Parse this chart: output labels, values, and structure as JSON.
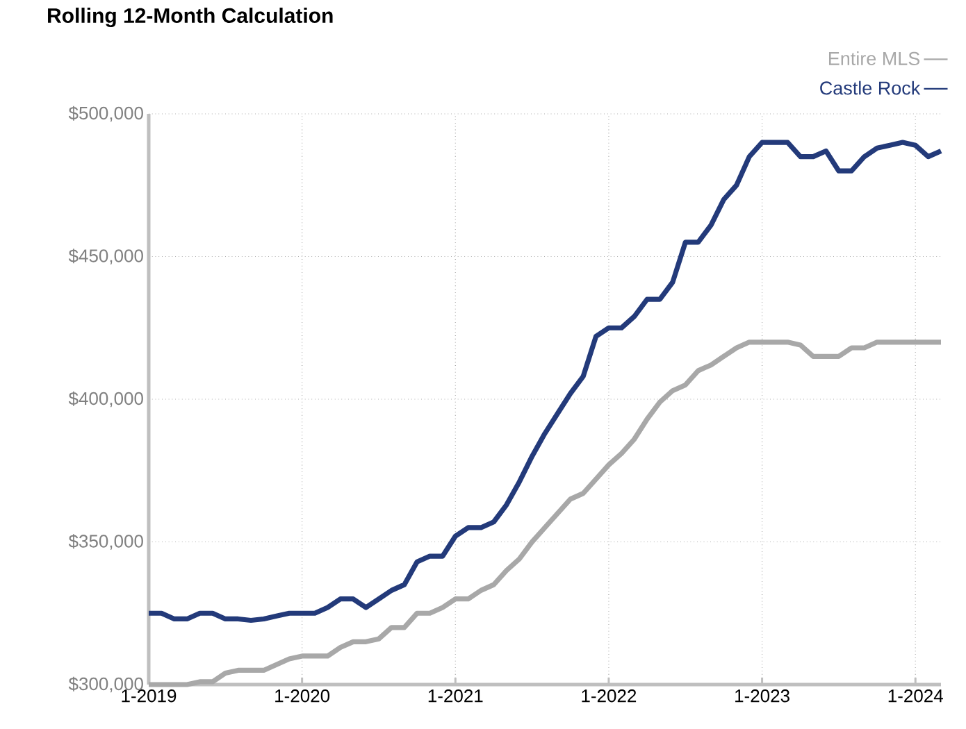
{
  "chart_data": {
    "type": "line",
    "title": "Rolling 12-Month Calculation",
    "x": [
      "2019-01",
      "2019-02",
      "2019-03",
      "2019-04",
      "2019-05",
      "2019-06",
      "2019-07",
      "2019-08",
      "2019-09",
      "2019-10",
      "2019-11",
      "2019-12",
      "2020-01",
      "2020-02",
      "2020-03",
      "2020-04",
      "2020-05",
      "2020-06",
      "2020-07",
      "2020-08",
      "2020-09",
      "2020-10",
      "2020-11",
      "2020-12",
      "2021-01",
      "2021-02",
      "2021-03",
      "2021-04",
      "2021-05",
      "2021-06",
      "2021-07",
      "2021-08",
      "2021-09",
      "2021-10",
      "2021-11",
      "2021-12",
      "2022-01",
      "2022-02",
      "2022-03",
      "2022-04",
      "2022-05",
      "2022-06",
      "2022-07",
      "2022-08",
      "2022-09",
      "2022-10",
      "2022-11",
      "2022-12",
      "2023-01",
      "2023-02",
      "2023-03",
      "2023-04",
      "2023-05",
      "2023-06",
      "2023-07",
      "2023-08",
      "2023-09",
      "2023-10",
      "2023-11",
      "2023-12",
      "2024-01",
      "2024-02",
      "2024-03"
    ],
    "series": [
      {
        "name": "Entire MLS",
        "color": "#a8a8a8",
        "values": [
          300000,
          300000,
          300000,
          300000,
          301000,
          301000,
          304000,
          305000,
          305000,
          305000,
          307000,
          309000,
          310000,
          310000,
          310000,
          313000,
          315000,
          315000,
          316000,
          320000,
          320000,
          325000,
          325000,
          327000,
          330000,
          330000,
          333000,
          335000,
          340000,
          344000,
          350000,
          355000,
          360000,
          365000,
          367000,
          372000,
          377000,
          381000,
          386000,
          393000,
          399000,
          403000,
          405000,
          410000,
          412000,
          415000,
          418000,
          420000,
          420000,
          420000,
          420000,
          419000,
          415000,
          415000,
          415000,
          418000,
          418000,
          420000,
          420000,
          420000,
          420000,
          420000,
          420000
        ]
      },
      {
        "name": "Castle Rock",
        "color": "#233a7a",
        "values": [
          325000,
          325000,
          323000,
          323000,
          325000,
          325000,
          323000,
          323000,
          322500,
          323000,
          324000,
          325000,
          325000,
          325000,
          327000,
          330000,
          330000,
          327000,
          330000,
          333000,
          335000,
          343000,
          345000,
          345000,
          352000,
          355000,
          355000,
          357000,
          363000,
          371000,
          380000,
          388000,
          395000,
          402000,
          408000,
          422000,
          425000,
          425000,
          429000,
          435000,
          435000,
          441000,
          455000,
          455000,
          461000,
          470000,
          475000,
          485000,
          490000,
          490000,
          490000,
          485000,
          485000,
          487000,
          480000,
          480000,
          485000,
          488000,
          489000,
          490000,
          489000,
          485000,
          487000
        ]
      }
    ],
    "xlim": [
      "2019-01",
      "2024-03"
    ],
    "xticks": [
      {
        "value": "2019-01",
        "label": "1-2019"
      },
      {
        "value": "2020-01",
        "label": "1-2020"
      },
      {
        "value": "2021-01",
        "label": "1-2021"
      },
      {
        "value": "2022-01",
        "label": "1-2022"
      },
      {
        "value": "2023-01",
        "label": "1-2023"
      },
      {
        "value": "2024-01",
        "label": "1-2024"
      }
    ],
    "ylim": [
      300000,
      500000
    ],
    "yticks": [
      {
        "value": 300000,
        "label": "$300,000"
      },
      {
        "value": 350000,
        "label": "$350,000"
      },
      {
        "value": 400000,
        "label": "$400,000"
      },
      {
        "value": 450000,
        "label": "$450,000"
      },
      {
        "value": 500000,
        "label": "$500,000"
      }
    ],
    "grid": true,
    "legend": "top right"
  }
}
